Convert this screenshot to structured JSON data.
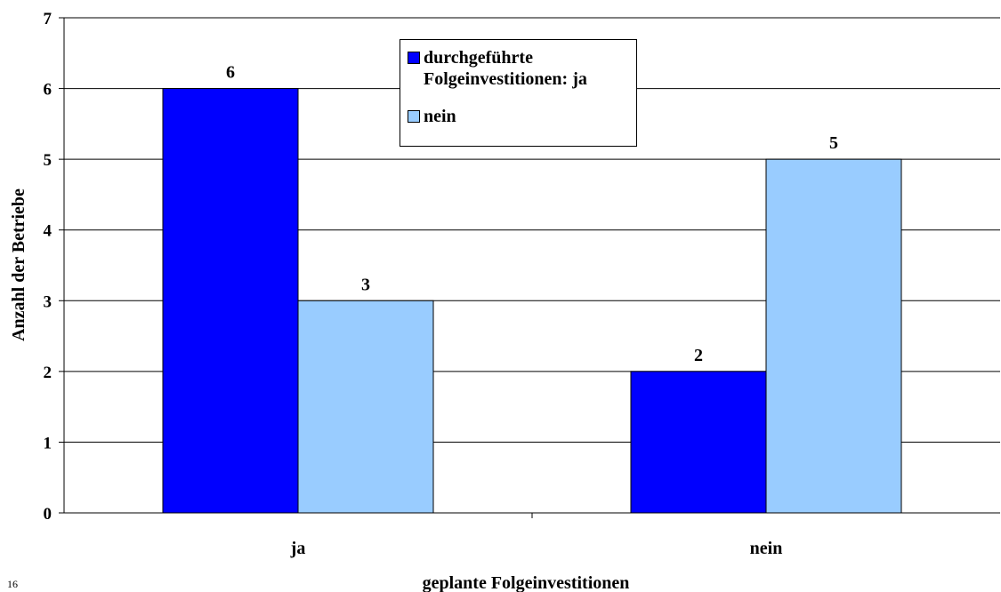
{
  "chart_data": {
    "type": "bar",
    "categories": [
      "ja",
      "nein"
    ],
    "series": [
      {
        "name": "durchgeführte Folgeinvestitionen: ja",
        "values": [
          6,
          2
        ],
        "color": "#0000ff"
      },
      {
        "name": "nein",
        "values": [
          3,
          5
        ],
        "color": "#99ccff"
      }
    ],
    "xlabel": "geplante Folgeinvestitionen",
    "ylabel": "Anzahl der Betriebe",
    "ylim": [
      0,
      7
    ],
    "yticks": [
      0,
      1,
      2,
      3,
      4,
      5,
      6,
      7
    ],
    "grid": true,
    "legend": "top-center",
    "data_labels": true
  },
  "footnote": "16"
}
